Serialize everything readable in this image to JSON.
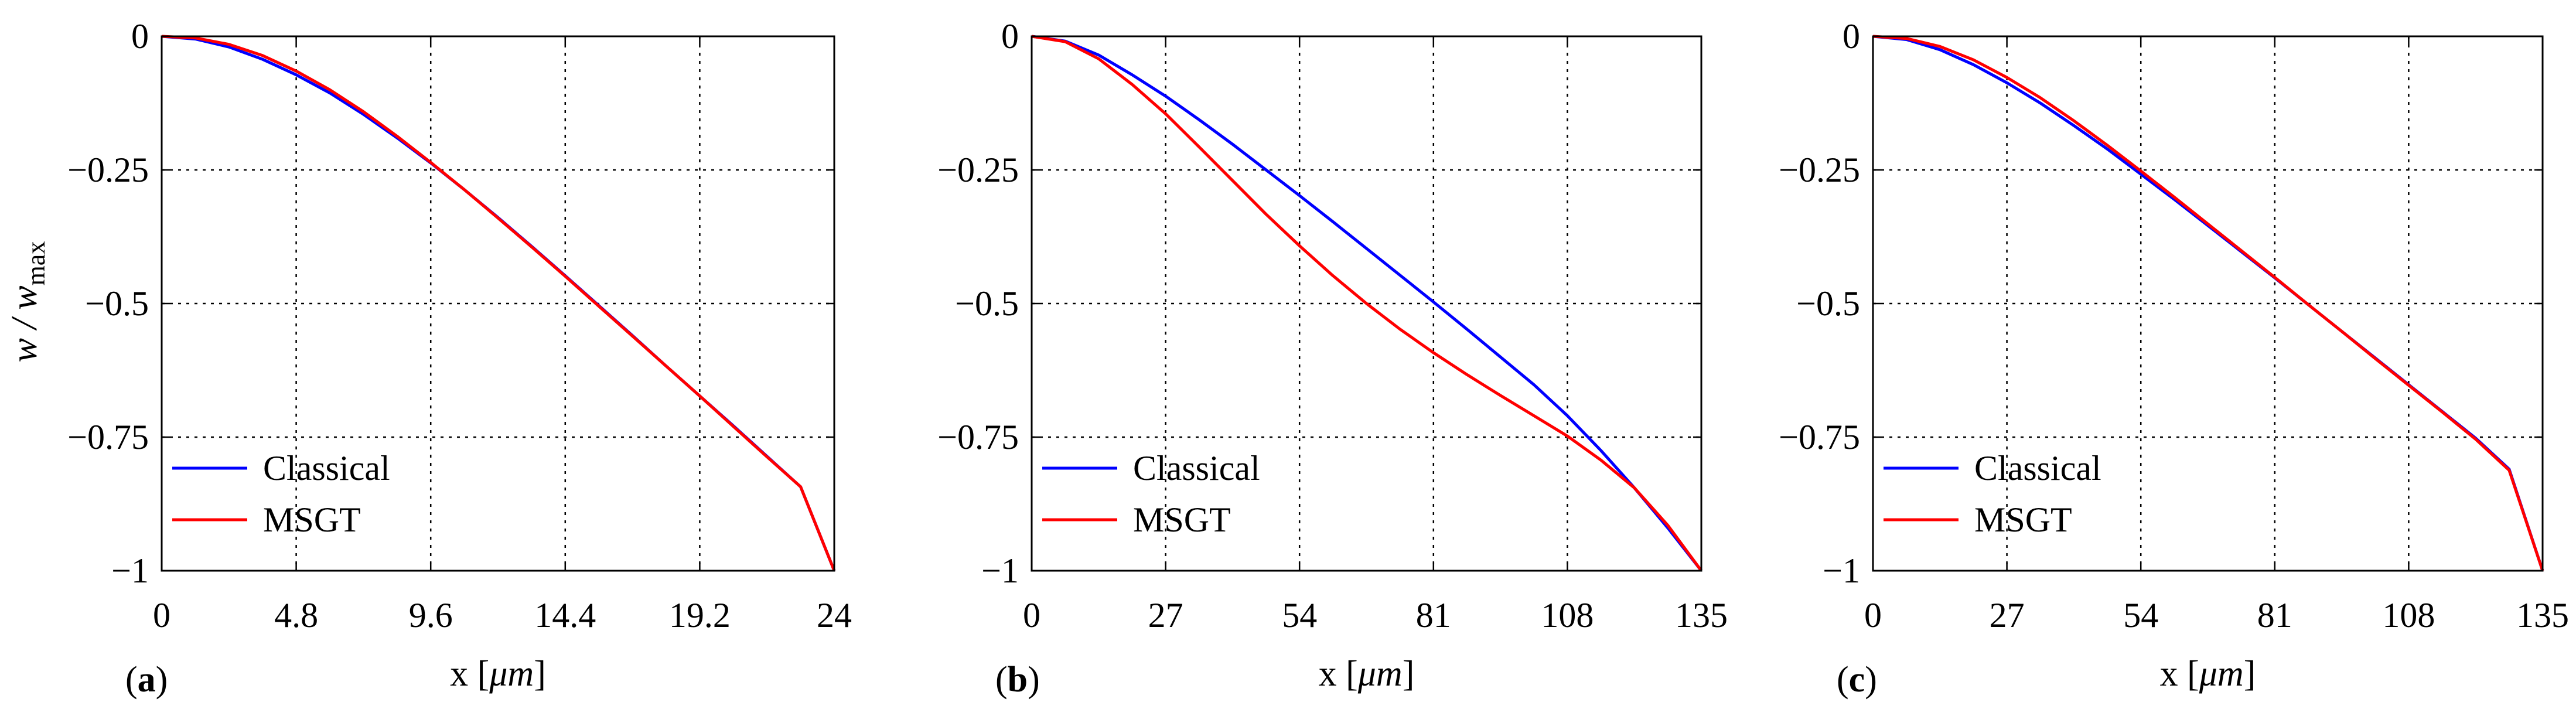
{
  "figure": {
    "ylabel_main": "w / w",
    "ylabel_sub": "max"
  },
  "chart_data": [
    {
      "type": "line",
      "panel_label": "(a)",
      "panel_letter": "a",
      "xlabel": "x [μm]",
      "xlabel_parts": {
        "pre": "x [",
        "unit": "μm",
        "post": "]"
      },
      "ylabel": "w/w_max",
      "xlim": [
        0,
        24
      ],
      "ylim": [
        -1,
        0
      ],
      "xticks": [
        0,
        4.8,
        9.6,
        14.4,
        19.2,
        24
      ],
      "xtick_labels": [
        "0",
        "4.8",
        "9.6",
        "14.4",
        "19.2",
        "24"
      ],
      "yticks": [
        0,
        -0.25,
        -0.5,
        -0.75,
        -1
      ],
      "ytick_labels": [
        "0",
        "−0.25",
        "−0.5",
        "−0.75",
        "−1"
      ],
      "grid": true,
      "legend_position": "bottom-left",
      "series": [
        {
          "name": "Classical",
          "color": "#0000ff",
          "x": [
            0,
            1.2,
            2.4,
            3.6,
            4.8,
            6.0,
            7.2,
            8.4,
            9.6,
            10.8,
            12.0,
            13.2,
            14.4,
            15.6,
            16.8,
            18.0,
            19.2,
            20.4,
            21.6,
            22.8,
            24.0
          ],
          "y": [
            0,
            -0.005,
            -0.02,
            -0.043,
            -0.072,
            -0.106,
            -0.146,
            -0.19,
            -0.237,
            -0.287,
            -0.339,
            -0.393,
            -0.448,
            -0.504,
            -0.56,
            -0.617,
            -0.673,
            -0.729,
            -0.786,
            -0.843,
            -1.0
          ]
        },
        {
          "name": "MSGT",
          "color": "#ff0000",
          "x": [
            0,
            1.2,
            2.4,
            3.6,
            4.8,
            6.0,
            7.2,
            8.4,
            9.6,
            10.8,
            12.0,
            13.2,
            14.4,
            15.6,
            16.8,
            18.0,
            19.2,
            20.4,
            21.6,
            22.8,
            24.0
          ],
          "y": [
            0,
            -0.003,
            -0.015,
            -0.036,
            -0.065,
            -0.1,
            -0.141,
            -0.187,
            -0.236,
            -0.287,
            -0.34,
            -0.394,
            -0.449,
            -0.505,
            -0.561,
            -0.617,
            -0.673,
            -0.73,
            -0.787,
            -0.843,
            -1.0
          ]
        }
      ]
    },
    {
      "type": "line",
      "panel_label": "(b)",
      "panel_letter": "b",
      "xlabel": "x [μm]",
      "xlabel_parts": {
        "pre": "x [",
        "unit": "μm",
        "post": "]"
      },
      "ylabel": "",
      "xlim": [
        0,
        135
      ],
      "ylim": [
        -1,
        0
      ],
      "xticks": [
        0,
        27,
        54,
        81,
        108,
        135
      ],
      "xtick_labels": [
        "0",
        "27",
        "54",
        "81",
        "108",
        "135"
      ],
      "yticks": [
        0,
        -0.25,
        -0.5,
        -0.75,
        -1
      ],
      "ytick_labels": [
        "0",
        "−0.25",
        "−0.5",
        "−0.75",
        "−1"
      ],
      "grid": true,
      "legend_position": "bottom-left",
      "series": [
        {
          "name": "Classical",
          "color": "#0000ff",
          "x": [
            0,
            6.75,
            13.5,
            20.25,
            27,
            33.75,
            40.5,
            47.25,
            54,
            60.75,
            67.5,
            74.25,
            81,
            87.75,
            94.5,
            101.25,
            108,
            114.75,
            121.5,
            128.25,
            135
          ],
          "y": [
            0,
            -0.009,
            -0.035,
            -0.072,
            -0.112,
            -0.156,
            -0.202,
            -0.25,
            -0.298,
            -0.347,
            -0.397,
            -0.447,
            -0.497,
            -0.548,
            -0.6,
            -0.652,
            -0.71,
            -0.775,
            -0.845,
            -0.92,
            -1.0
          ]
        },
        {
          "name": "MSGT",
          "color": "#ff0000",
          "x": [
            0,
            6.75,
            13.5,
            20.25,
            27,
            33.75,
            40.5,
            47.25,
            54,
            60.75,
            67.5,
            74.25,
            81,
            87.75,
            94.5,
            101.25,
            108,
            114.75,
            121.5,
            128.25,
            135
          ],
          "y": [
            0,
            -0.01,
            -0.042,
            -0.09,
            -0.145,
            -0.207,
            -0.27,
            -0.333,
            -0.392,
            -0.448,
            -0.5,
            -0.548,
            -0.592,
            -0.633,
            -0.672,
            -0.71,
            -0.748,
            -0.793,
            -0.845,
            -0.915,
            -1.0
          ]
        }
      ]
    },
    {
      "type": "line",
      "panel_label": "(c)",
      "panel_letter": "c",
      "xlabel": "x [μm]",
      "xlabel_parts": {
        "pre": "x [",
        "unit": "μm",
        "post": "]"
      },
      "ylabel": "",
      "xlim": [
        0,
        135
      ],
      "ylim": [
        -1,
        0
      ],
      "xticks": [
        0,
        27,
        54,
        81,
        108,
        135
      ],
      "xtick_labels": [
        "0",
        "27",
        "54",
        "81",
        "108",
        "135"
      ],
      "yticks": [
        0,
        -0.25,
        -0.5,
        -0.75,
        -1
      ],
      "ytick_labels": [
        "0",
        "−0.25",
        "−0.5",
        "−0.75",
        "−1"
      ],
      "grid": true,
      "legend_position": "bottom-left",
      "series": [
        {
          "name": "Classical",
          "color": "#0000ff",
          "x": [
            0,
            6.75,
            13.5,
            20.25,
            27,
            33.75,
            40.5,
            47.25,
            54,
            60.75,
            67.5,
            74.25,
            81,
            87.75,
            94.5,
            101.25,
            108,
            114.75,
            121.5,
            128.25,
            135
          ],
          "y": [
            0,
            -0.006,
            -0.025,
            -0.053,
            -0.087,
            -0.125,
            -0.167,
            -0.211,
            -0.258,
            -0.305,
            -0.354,
            -0.403,
            -0.452,
            -0.502,
            -0.552,
            -0.602,
            -0.652,
            -0.702,
            -0.752,
            -0.81,
            -1.0
          ]
        },
        {
          "name": "MSGT",
          "color": "#ff0000",
          "x": [
            0,
            6.75,
            13.5,
            20.25,
            27,
            33.75,
            40.5,
            47.25,
            54,
            60.75,
            67.5,
            74.25,
            81,
            87.75,
            94.5,
            101.25,
            108,
            114.75,
            121.5,
            128.25,
            135
          ],
          "y": [
            0,
            -0.004,
            -0.019,
            -0.044,
            -0.077,
            -0.115,
            -0.158,
            -0.204,
            -0.252,
            -0.301,
            -0.351,
            -0.401,
            -0.451,
            -0.502,
            -0.552,
            -0.603,
            -0.653,
            -0.703,
            -0.754,
            -0.812,
            -1.0
          ]
        }
      ]
    }
  ]
}
